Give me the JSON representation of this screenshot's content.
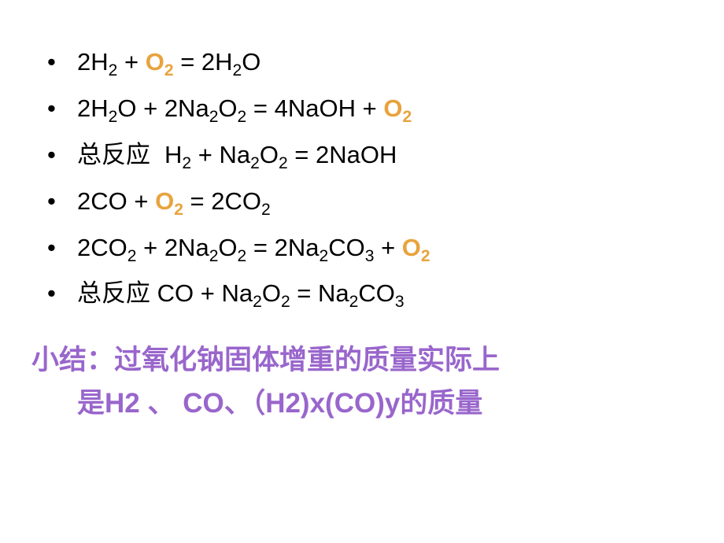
{
  "colors": {
    "text": "#000000",
    "highlight": "#e8a33d",
    "summary": "#9966cc",
    "background": "#ffffff"
  },
  "typography": {
    "body_fontsize": 31,
    "summary_fontsize": 35,
    "sub_scale": 0.68
  },
  "bullet_char": "•",
  "equations": [
    {
      "segments": [
        {
          "t": "2H"
        },
        {
          "t": "2",
          "sub": true
        },
        {
          "t": " + "
        },
        {
          "t": "O",
          "hl": true
        },
        {
          "t": "2",
          "sub": true,
          "hl": true
        },
        {
          "t": " = 2H"
        },
        {
          "t": "2",
          "sub": true
        },
        {
          "t": "O"
        }
      ]
    },
    {
      "segments": [
        {
          "t": "2H"
        },
        {
          "t": "2",
          "sub": true
        },
        {
          "t": "O + 2Na"
        },
        {
          "t": "2",
          "sub": true
        },
        {
          "t": "O"
        },
        {
          "t": "2",
          "sub": true
        },
        {
          "t": " = 4NaOH + "
        },
        {
          "t": "O",
          "hl": true
        },
        {
          "t": "2",
          "sub": true,
          "hl": true
        }
      ]
    },
    {
      "segments": [
        {
          "t": "总反应"
        },
        {
          "t": "    H",
          "pre_space": true
        },
        {
          "t": "2",
          "sub": true
        },
        {
          "t": " + Na"
        },
        {
          "t": "2",
          "sub": true
        },
        {
          "t": "O"
        },
        {
          "t": "2",
          "sub": true
        },
        {
          "t": " = 2NaOH"
        }
      ]
    },
    {
      "segments": [
        {
          "t": "2CO + "
        },
        {
          "t": "O",
          "hl": true
        },
        {
          "t": "2",
          "sub": true,
          "hl": true
        },
        {
          "t": " = 2CO"
        },
        {
          "t": "2",
          "sub": true
        }
      ]
    },
    {
      "segments": [
        {
          "t": "2CO"
        },
        {
          "t": "2",
          "sub": true
        },
        {
          "t": " + 2Na"
        },
        {
          "t": "2",
          "sub": true
        },
        {
          "t": "O"
        },
        {
          "t": "2",
          "sub": true
        },
        {
          "t": " = 2Na"
        },
        {
          "t": "2",
          "sub": true
        },
        {
          "t": "CO"
        },
        {
          "t": "3",
          "sub": true
        },
        {
          "t": " + "
        },
        {
          "t": "O",
          "hl": true
        },
        {
          "t": "2",
          "sub": true,
          "hl": true
        }
      ]
    },
    {
      "segments": [
        {
          "t": "总反应 CO + Na"
        },
        {
          "t": "2",
          "sub": true
        },
        {
          "t": "O"
        },
        {
          "t": "2",
          "sub": true
        },
        {
          "t": " = Na"
        },
        {
          "t": "2",
          "sub": true
        },
        {
          "t": "CO"
        },
        {
          "t": "3",
          "sub": true
        }
      ]
    }
  ],
  "summary": {
    "line1": "小结：过氧化钠固体增重的质量实际上",
    "line2": "是H2 、 CO、（H2)x(CO)y的质量"
  }
}
